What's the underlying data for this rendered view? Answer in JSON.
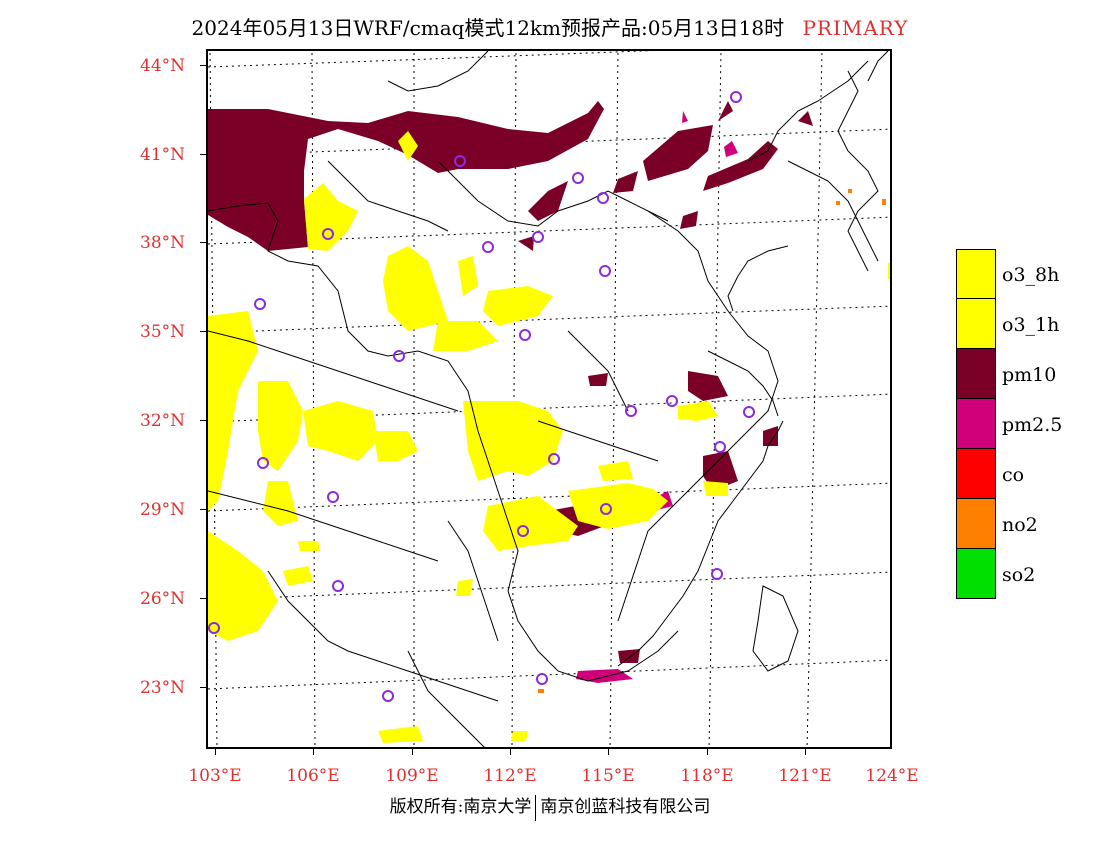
{
  "title": {
    "main": "2024年05月13日WRF/cmaq模式12km预报产品:05月13日18时",
    "tag": "PRIMARY"
  },
  "map": {
    "lat_labels": [
      "44°N",
      "41°N",
      "38°N",
      "35°N",
      "32°N",
      "29°N",
      "26°N",
      "23°N"
    ],
    "lon_labels": [
      "103°E",
      "106°E",
      "109°E",
      "112°E",
      "115°E",
      "118°E",
      "121°E",
      "124°E"
    ]
  },
  "legend": {
    "items": [
      {
        "label": "o3_8h",
        "color": "#ffff00"
      },
      {
        "label": "o3_1h",
        "color": "#ffff00"
      },
      {
        "label": "pm10",
        "color": "#7a0028"
      },
      {
        "label": "pm2.5",
        "color": "#d0007a"
      },
      {
        "label": "co",
        "color": "#ff0000"
      },
      {
        "label": "no2",
        "color": "#ff8000"
      },
      {
        "label": "so2",
        "color": "#00e000"
      }
    ]
  },
  "footer": {
    "left": "版权所有:南京大学",
    "right": "南京创蓝科技有限公司"
  },
  "colors": {
    "label_red": "#e03030",
    "o3": "#ffff00",
    "pm10": "#7a0028",
    "pm25": "#d0007a",
    "no2": "#ff8000",
    "site_marker": "#8a2be2"
  }
}
